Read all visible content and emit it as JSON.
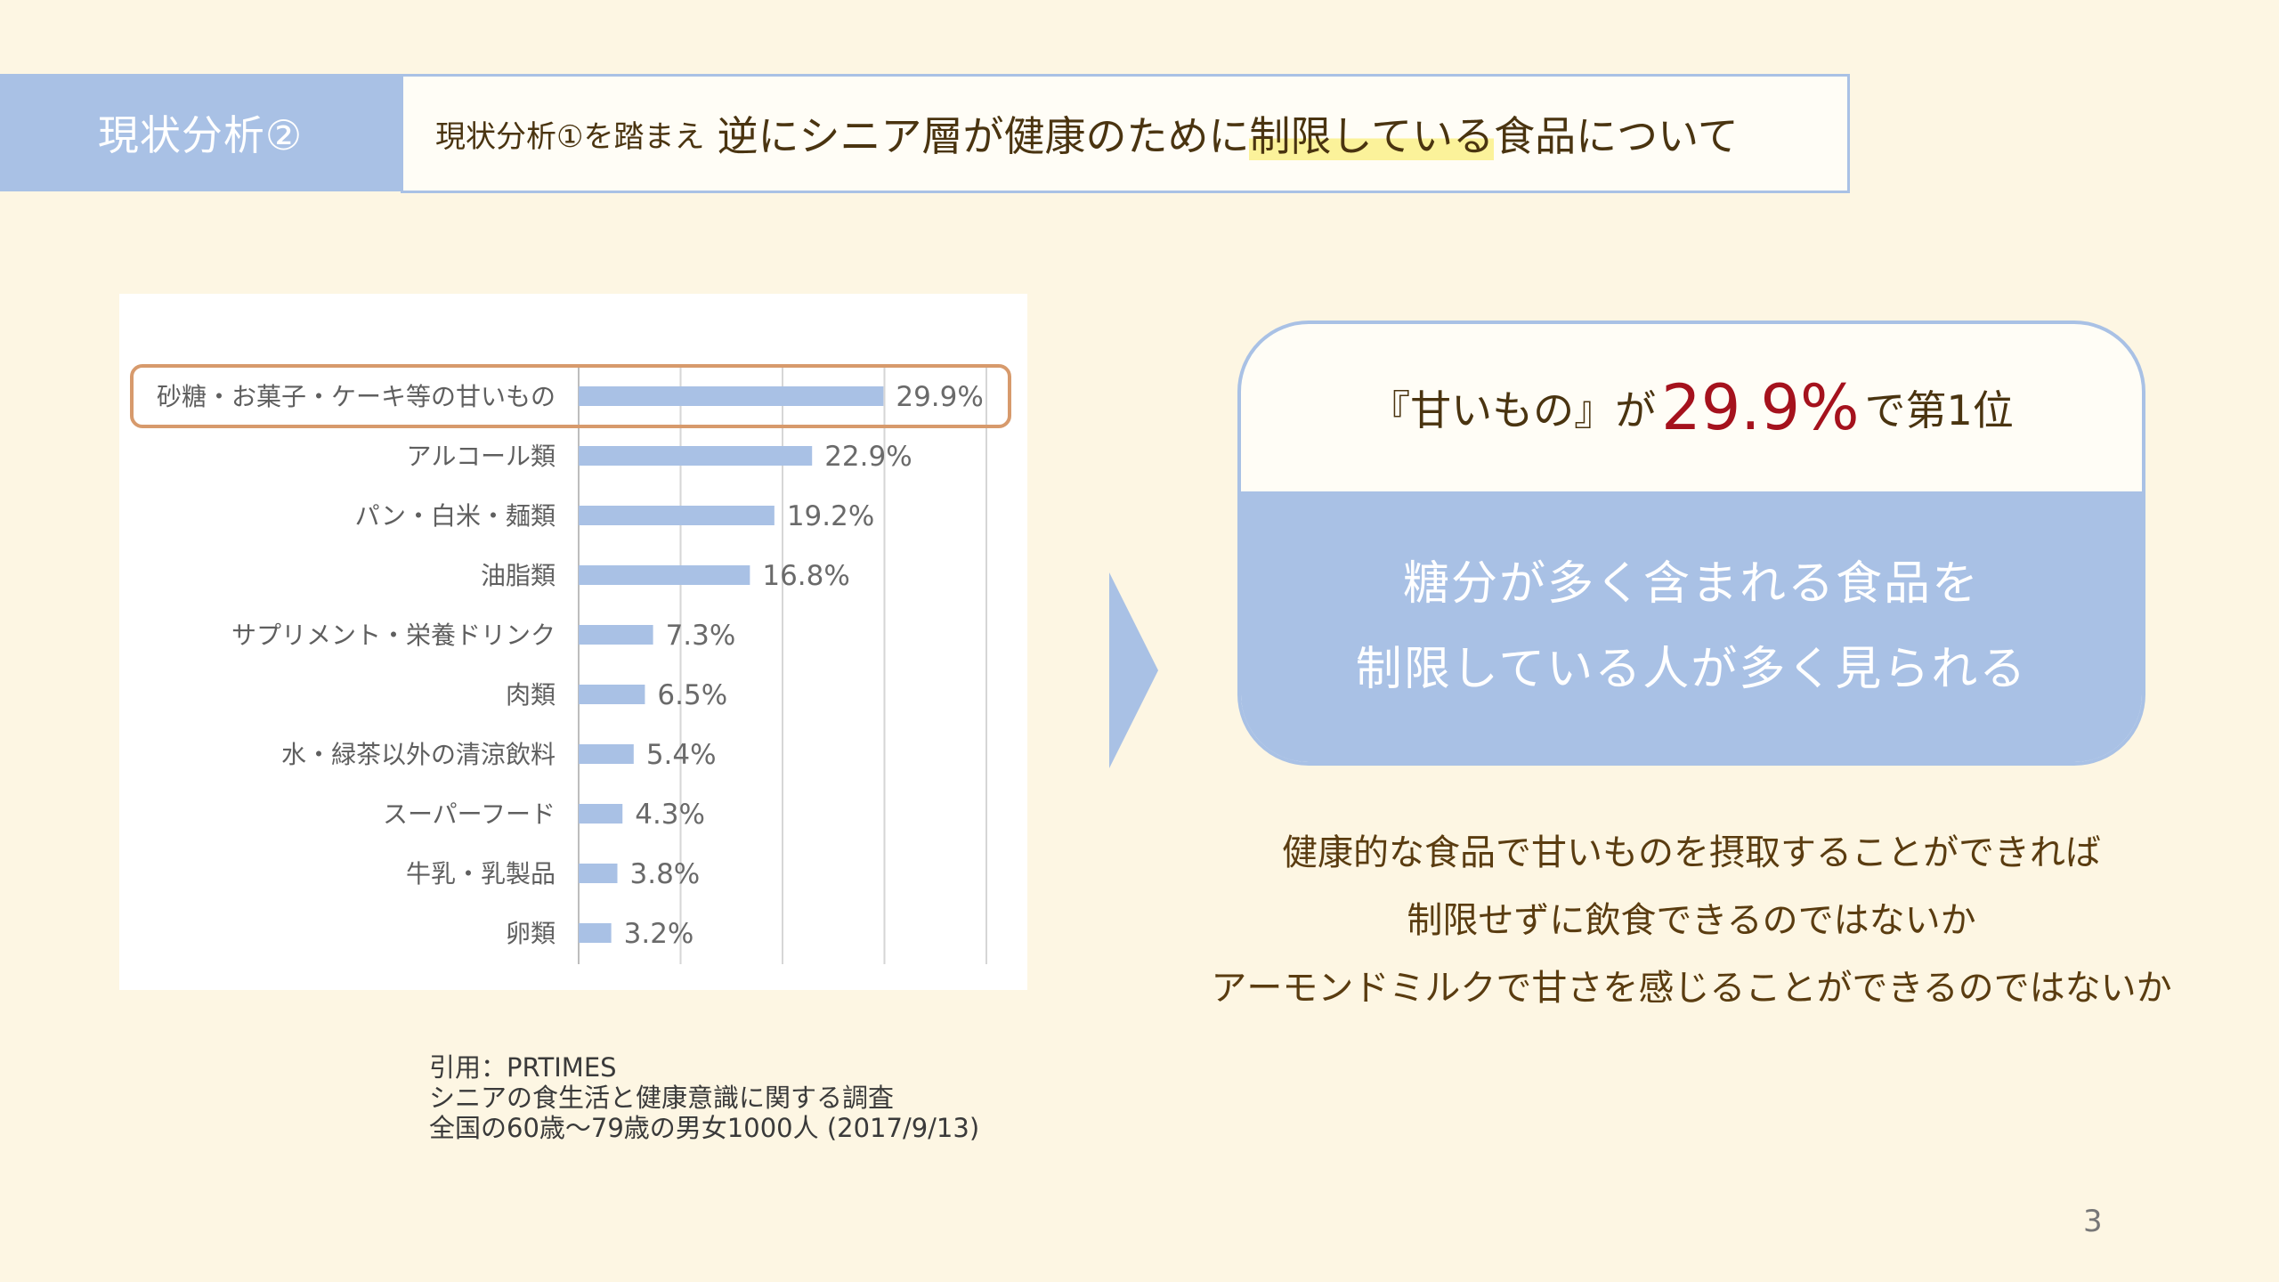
{
  "header": {
    "tab_label": "現状分析②",
    "subtitle_prefix": "現状分析①を踏まえ",
    "subtitle_main_before": "逆にシニア層が健康のために",
    "subtitle_main_highlight": "制限している",
    "subtitle_main_after": "食品について"
  },
  "chart_data": {
    "type": "bar",
    "orientation": "horizontal",
    "categories": [
      "砂糖・お菓子・ケーキ等の甘いもの",
      "アルコール類",
      "パン・白米・麺類",
      "油脂類",
      "サプリメント・栄養ドリンク",
      "肉類",
      "水・緑茶以外の清涼飲料",
      "スーパーフード",
      "牛乳・乳製品",
      "卵類"
    ],
    "values": [
      29.9,
      22.9,
      19.2,
      16.8,
      7.3,
      6.5,
      5.4,
      4.3,
      3.8,
      3.2
    ],
    "value_labels": [
      "29.9%",
      "22.9%",
      "19.2%",
      "16.8%",
      "7.3%",
      "6.5%",
      "5.4%",
      "4.3%",
      "3.8%",
      "3.2%"
    ],
    "xlim": [
      0,
      40
    ],
    "grid": true,
    "highlight_index": 0,
    "bar_color": "#a9c1e5",
    "highlight_color": "#d79a6c",
    "highlight_value_color": "#a5121d"
  },
  "source": {
    "line1": "引用：PRTIMES",
    "line2": "シニアの食生活と健康意識に関する調査",
    "line3": "全国の60歳〜79歳の男女1000人 (2017/9/13)"
  },
  "callout": {
    "top_before": "『甘いもの』が",
    "top_pct": "29.9%",
    "top_after": "で第1位",
    "bottom_line1": "糖分が多く含まれる食品を",
    "bottom_line2": "制限している人が多く見られる"
  },
  "notes": {
    "line1": "健康的な食品で甘いものを摂取することができれば",
    "line2": "制限せずに飲食できるのではないか",
    "line3": "アーモンドミルクで甘さを感じることができるのではないか"
  },
  "page_number": "3"
}
